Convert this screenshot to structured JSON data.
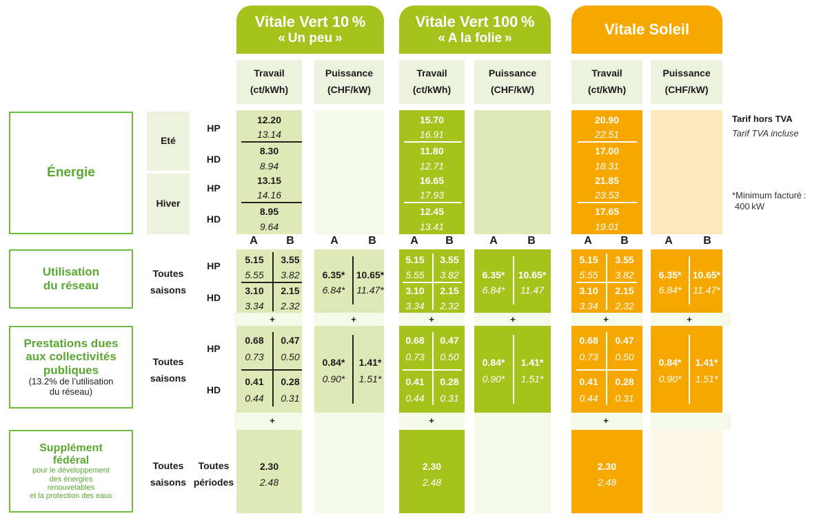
{
  "columns": [
    {
      "title": "Vitale Vert 10 %",
      "subtitle": "« Un peu »",
      "color": "#a6c21d"
    },
    {
      "title": "Vitale Vert 100 %",
      "subtitle": "« A la folie »",
      "color": "#a6c21d"
    },
    {
      "title": "Vitale Soleil",
      "subtitle": "",
      "color": "#f7a800"
    }
  ],
  "subheaders": {
    "travail": "Travail",
    "travail_unit": "(ct/kWh)",
    "puissance": "Puissance",
    "puissance_unit": "(CHF/kW)"
  },
  "categories": {
    "energie": "Énergie",
    "reseau_line1": "Utilisation",
    "reseau_line2": "du réseau",
    "prest_line1": "Prestations dues",
    "prest_line2": "aux collectivités",
    "prest_line3": "publiques",
    "prest_note1": "(13.2% de l’utilisation",
    "prest_note2": "du réseau)",
    "supp_line1": "Supplément",
    "supp_line2": "fédéral",
    "supp_note1": "pour le développement",
    "supp_note2": "des énergies",
    "supp_note3": "renouvelables",
    "supp_note4": "et la protection des eaux"
  },
  "seasons": {
    "ete": "Eté",
    "hiver": "Hiver",
    "toutes1": "Toutes",
    "toutes2": "saisons",
    "periodes1": "Toutes",
    "periodes2": "périodes",
    "hp": "HP",
    "hd": "HD"
  },
  "labels": {
    "a": "A",
    "b": "B",
    "plus": "+"
  },
  "energy": [
    {
      "ete_hp": "12.20",
      "ete_hp_tva": "13.14",
      "ete_hd": "8.30",
      "ete_hd_tva": "8.94",
      "hiver_hp": "13.15",
      "hiver_hp_tva": "14.16",
      "hiver_hd": "8.95",
      "hiver_hd_tva": "9.64"
    },
    {
      "ete_hp": "15.70",
      "ete_hp_tva": "16.91",
      "ete_hd": "11.80",
      "ete_hd_tva": "12.71",
      "hiver_hp": "16.65",
      "hiver_hp_tva": "17.93",
      "hiver_hd": "12.45",
      "hiver_hd_tva": "13.41"
    },
    {
      "ete_hp": "20.90",
      "ete_hp_tva": "22.51",
      "ete_hd": "17.00",
      "ete_hd_tva": "18.31",
      "hiver_hp": "21.85",
      "hiver_hp_tva": "23.53",
      "hiver_hd": "17.65",
      "hiver_hd_tva": "19.01"
    }
  ],
  "reseau": {
    "travail": {
      "hp_a": "5.15",
      "hp_b": "3.55",
      "hp_a_tva": "5.55",
      "hp_b_tva": "3.82",
      "hd_a": "3.10",
      "hd_b": "2.15",
      "hd_a_tva": "3.34",
      "hd_b_tva": "2.32"
    },
    "puissance": {
      "a": "6.35*",
      "b": "10.65*",
      "a_tva": "6.84*",
      "b_tva": "11.47*",
      "b_tva_mid": "11.47"
    }
  },
  "prestations": {
    "travail": {
      "hp_a": "0.68",
      "hp_b": "0.47",
      "hp_a_tva": "0.73",
      "hp_b_tva": "0.50",
      "hd_a": "0.41",
      "hd_b": "0.28",
      "hd_a_tva": "0.44",
      "hd_b_tva": "0.31"
    },
    "puissance": {
      "a": "0.84*",
      "b": "1.41*",
      "a_tva": "0.90*",
      "b_tva": "1.51*"
    }
  },
  "supplement": {
    "value": "2.30",
    "value_tva": "2.48"
  },
  "notes": {
    "hors_tva": "Tarif hors TVA",
    "tva_incluse": "Tarif TVA incluse",
    "minimum1": "*Minimum facturé :",
    "minimum2": "400 kW"
  }
}
